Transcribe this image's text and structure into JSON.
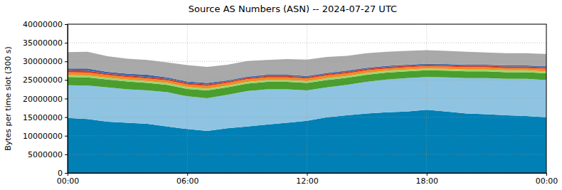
{
  "chart_data": {
    "type": "area",
    "title": "Source AS Numbers (ASN) -- 2024-07-27 UTC",
    "y_label": "Bytes per time slot (300 s)",
    "stacked": true,
    "grid": true,
    "x": [
      0,
      1,
      2,
      3,
      4,
      5,
      6,
      7,
      8,
      9,
      10,
      11,
      12,
      13,
      14,
      15,
      16,
      17,
      18,
      19,
      20,
      21,
      22,
      23,
      24
    ],
    "xlim": [
      0,
      24
    ],
    "xticks": [
      {
        "value": 0,
        "label": "00:00"
      },
      {
        "value": 6,
        "label": "06:00"
      },
      {
        "value": 12,
        "label": "12:00"
      },
      {
        "value": 18,
        "label": "18:00"
      },
      {
        "value": 24,
        "label": "00:00"
      }
    ],
    "ylim": [
      0,
      40000000
    ],
    "yticks": [
      0,
      5000000,
      10000000,
      15000000,
      20000000,
      25000000,
      30000000,
      35000000,
      40000000
    ],
    "series": [
      {
        "color": "#0080b4",
        "values": [
          14800000,
          14500000,
          13800000,
          13500000,
          13200000,
          12500000,
          11800000,
          11300000,
          12000000,
          12500000,
          13000000,
          13500000,
          14000000,
          15000000,
          15500000,
          16000000,
          16300000,
          16500000,
          17000000,
          16500000,
          16000000,
          15800000,
          15500000,
          15300000,
          15000000
        ]
      },
      {
        "color": "#8ec4e2",
        "values": [
          8800000,
          9000000,
          9200000,
          9000000,
          9000000,
          9200000,
          8800000,
          8800000,
          9000000,
          9500000,
          9500000,
          9000000,
          8200000,
          8000000,
          8200000,
          8500000,
          8800000,
          9000000,
          8800000,
          9200000,
          9500000,
          9700000,
          9800000,
          10000000,
          10000000
        ]
      },
      {
        "color": "#4a9e2e",
        "values": [
          2200000,
          2200000,
          2100000,
          2100000,
          2000000,
          2000000,
          2000000,
          2100000,
          2000000,
          2000000,
          2000000,
          2000000,
          2000000,
          2000000,
          1900000,
          1900000,
          1900000,
          1800000,
          1800000,
          1800000,
          1800000,
          1800000,
          1800000,
          1800000,
          1800000
        ]
      },
      {
        "color": "#9ed46a",
        "values": [
          500000,
          500000,
          500000,
          500000,
          500000,
          500000,
          500000,
          500000,
          500000,
          500000,
          500000,
          500000,
          500000,
          500000,
          500000,
          500000,
          500000,
          500000,
          500000,
          500000,
          500000,
          500000,
          500000,
          500000,
          500000
        ]
      },
      {
        "color": "#f08a24",
        "values": [
          800000,
          800000,
          700000,
          700000,
          700000,
          700000,
          700000,
          700000,
          700000,
          700000,
          700000,
          700000,
          700000,
          700000,
          700000,
          700000,
          600000,
          600000,
          600000,
          600000,
          600000,
          600000,
          600000,
          600000,
          700000
        ]
      },
      {
        "color": "#d8361e",
        "values": [
          500000,
          500000,
          400000,
          400000,
          400000,
          400000,
          400000,
          400000,
          400000,
          400000,
          400000,
          400000,
          400000,
          400000,
          400000,
          400000,
          400000,
          400000,
          400000,
          400000,
          400000,
          400000,
          400000,
          400000,
          400000
        ]
      },
      {
        "color": "#3a66a8",
        "values": [
          500000,
          600000,
          500000,
          500000,
          600000,
          400000,
          400000,
          400000,
          300000,
          300000,
          300000,
          300000,
          300000,
          300000,
          300000,
          300000,
          300000,
          300000,
          300000,
          300000,
          300000,
          300000,
          300000,
          300000,
          300000
        ]
      },
      {
        "color": "#a9a9a9",
        "values": [
          4400000,
          4500000,
          4200000,
          4000000,
          4000000,
          4000000,
          4400000,
          4300000,
          4200000,
          4200000,
          4000000,
          4200000,
          4400000,
          4300000,
          4000000,
          3900000,
          3800000,
          3700000,
          3600000,
          3500000,
          3500000,
          3300000,
          3300000,
          3300000,
          3300000
        ]
      }
    ]
  }
}
